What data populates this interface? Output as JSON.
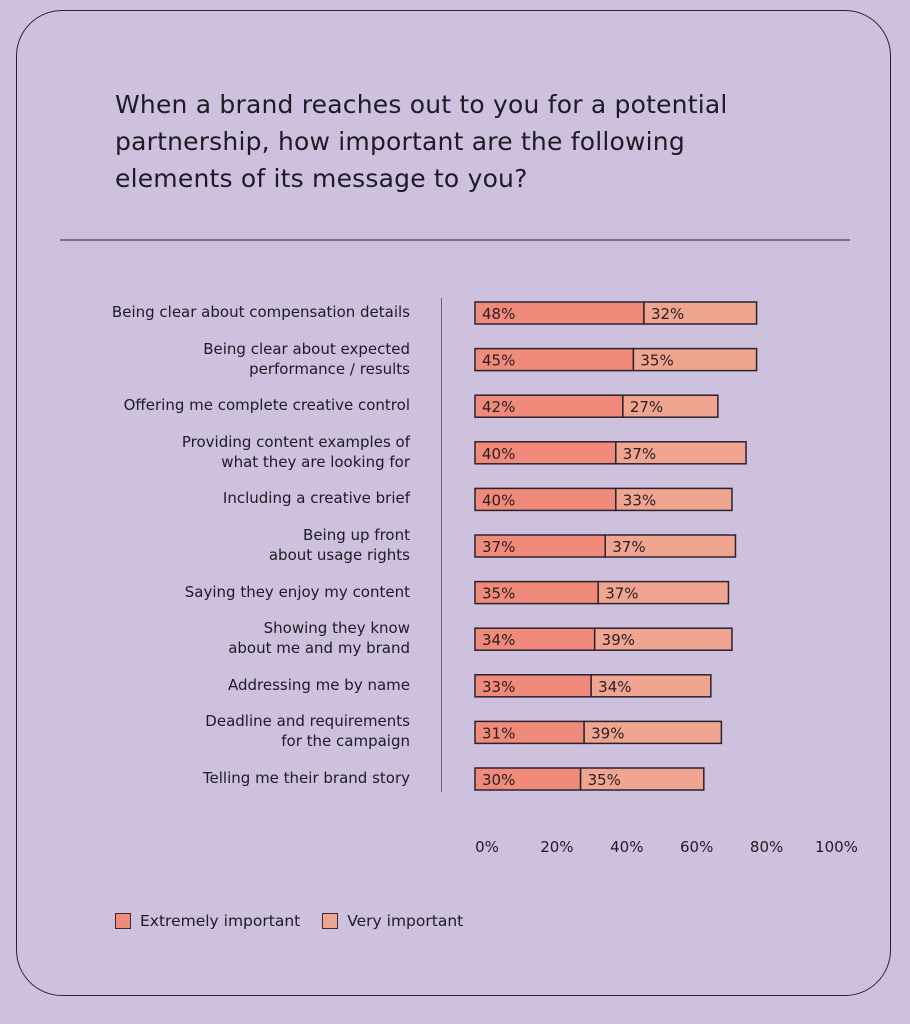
{
  "title": "When a brand reaches out to you for a potential partnership, how important are the following elements of its message to you?",
  "colors": {
    "background": "#cdc1dd",
    "extremely": "#f08a7a",
    "very": "#f0a590",
    "border": "#2b2230"
  },
  "chart_data": {
    "type": "bar",
    "stacked": true,
    "orientation": "horizontal",
    "title": "When a brand reaches out to you for a potential partnership, how important are the following elements of its message to you?",
    "categories": [
      "Being clear about compensation details",
      "Being clear about expected\nperformance / results",
      "Offering me complete creative control",
      "Providing content examples of\nwhat they are looking for",
      "Including a creative brief",
      "Being up front\nabout usage rights",
      "Saying they enjoy my content",
      "Showing they know\nabout me and my brand",
      "Addressing me by name",
      "Deadline and requirements\nfor the campaign",
      "Telling me their brand story"
    ],
    "series": [
      {
        "name": "Extremely important",
        "values": [
          48,
          45,
          42,
          40,
          40,
          37,
          35,
          34,
          33,
          31,
          30
        ]
      },
      {
        "name": "Very important",
        "values": [
          32,
          35,
          27,
          37,
          33,
          37,
          37,
          39,
          34,
          39,
          35
        ]
      }
    ],
    "xlim": [
      0,
      100
    ],
    "xticks": [
      "0%",
      "20%",
      "40%",
      "60%",
      "80%",
      "100%"
    ],
    "legend": "bottom-left",
    "grid": false
  }
}
